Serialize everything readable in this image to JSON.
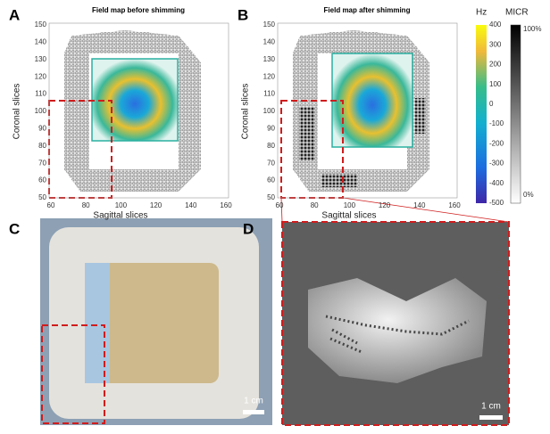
{
  "panels": [
    {
      "label": "A",
      "title": "Field map before shimming",
      "x_label": "Sagittal slices",
      "y_label": "Coronal slices",
      "xticks": [
        "60",
        "80",
        "100",
        "120",
        "140",
        "160"
      ],
      "yticks": [
        "150",
        "140",
        "130",
        "120",
        "110",
        "100",
        "90",
        "80",
        "70",
        "60",
        "50"
      ]
    },
    {
      "label": "B",
      "title": "Field map after shimming",
      "x_label": "Sagittal slices",
      "y_label": "Coronal slices",
      "xticks": [
        "60",
        "80",
        "100",
        "120",
        "140",
        "160"
      ],
      "yticks": [
        "150",
        "140",
        "130",
        "120",
        "110",
        "100",
        "90",
        "80",
        "70",
        "60",
        "50"
      ]
    }
  ],
  "colorbars": [
    {
      "title": "Hz",
      "ticks": [
        "400",
        "300",
        "200",
        "100",
        "0",
        "-100",
        "-200",
        "-300",
        "-400",
        "-500"
      ]
    },
    {
      "title": "MICR",
      "ticks": [
        "100%",
        "0%"
      ]
    }
  ],
  "photos": [
    {
      "label": "C",
      "scale": "1 cm"
    },
    {
      "label": "D",
      "scale": "1 cm"
    }
  ]
}
